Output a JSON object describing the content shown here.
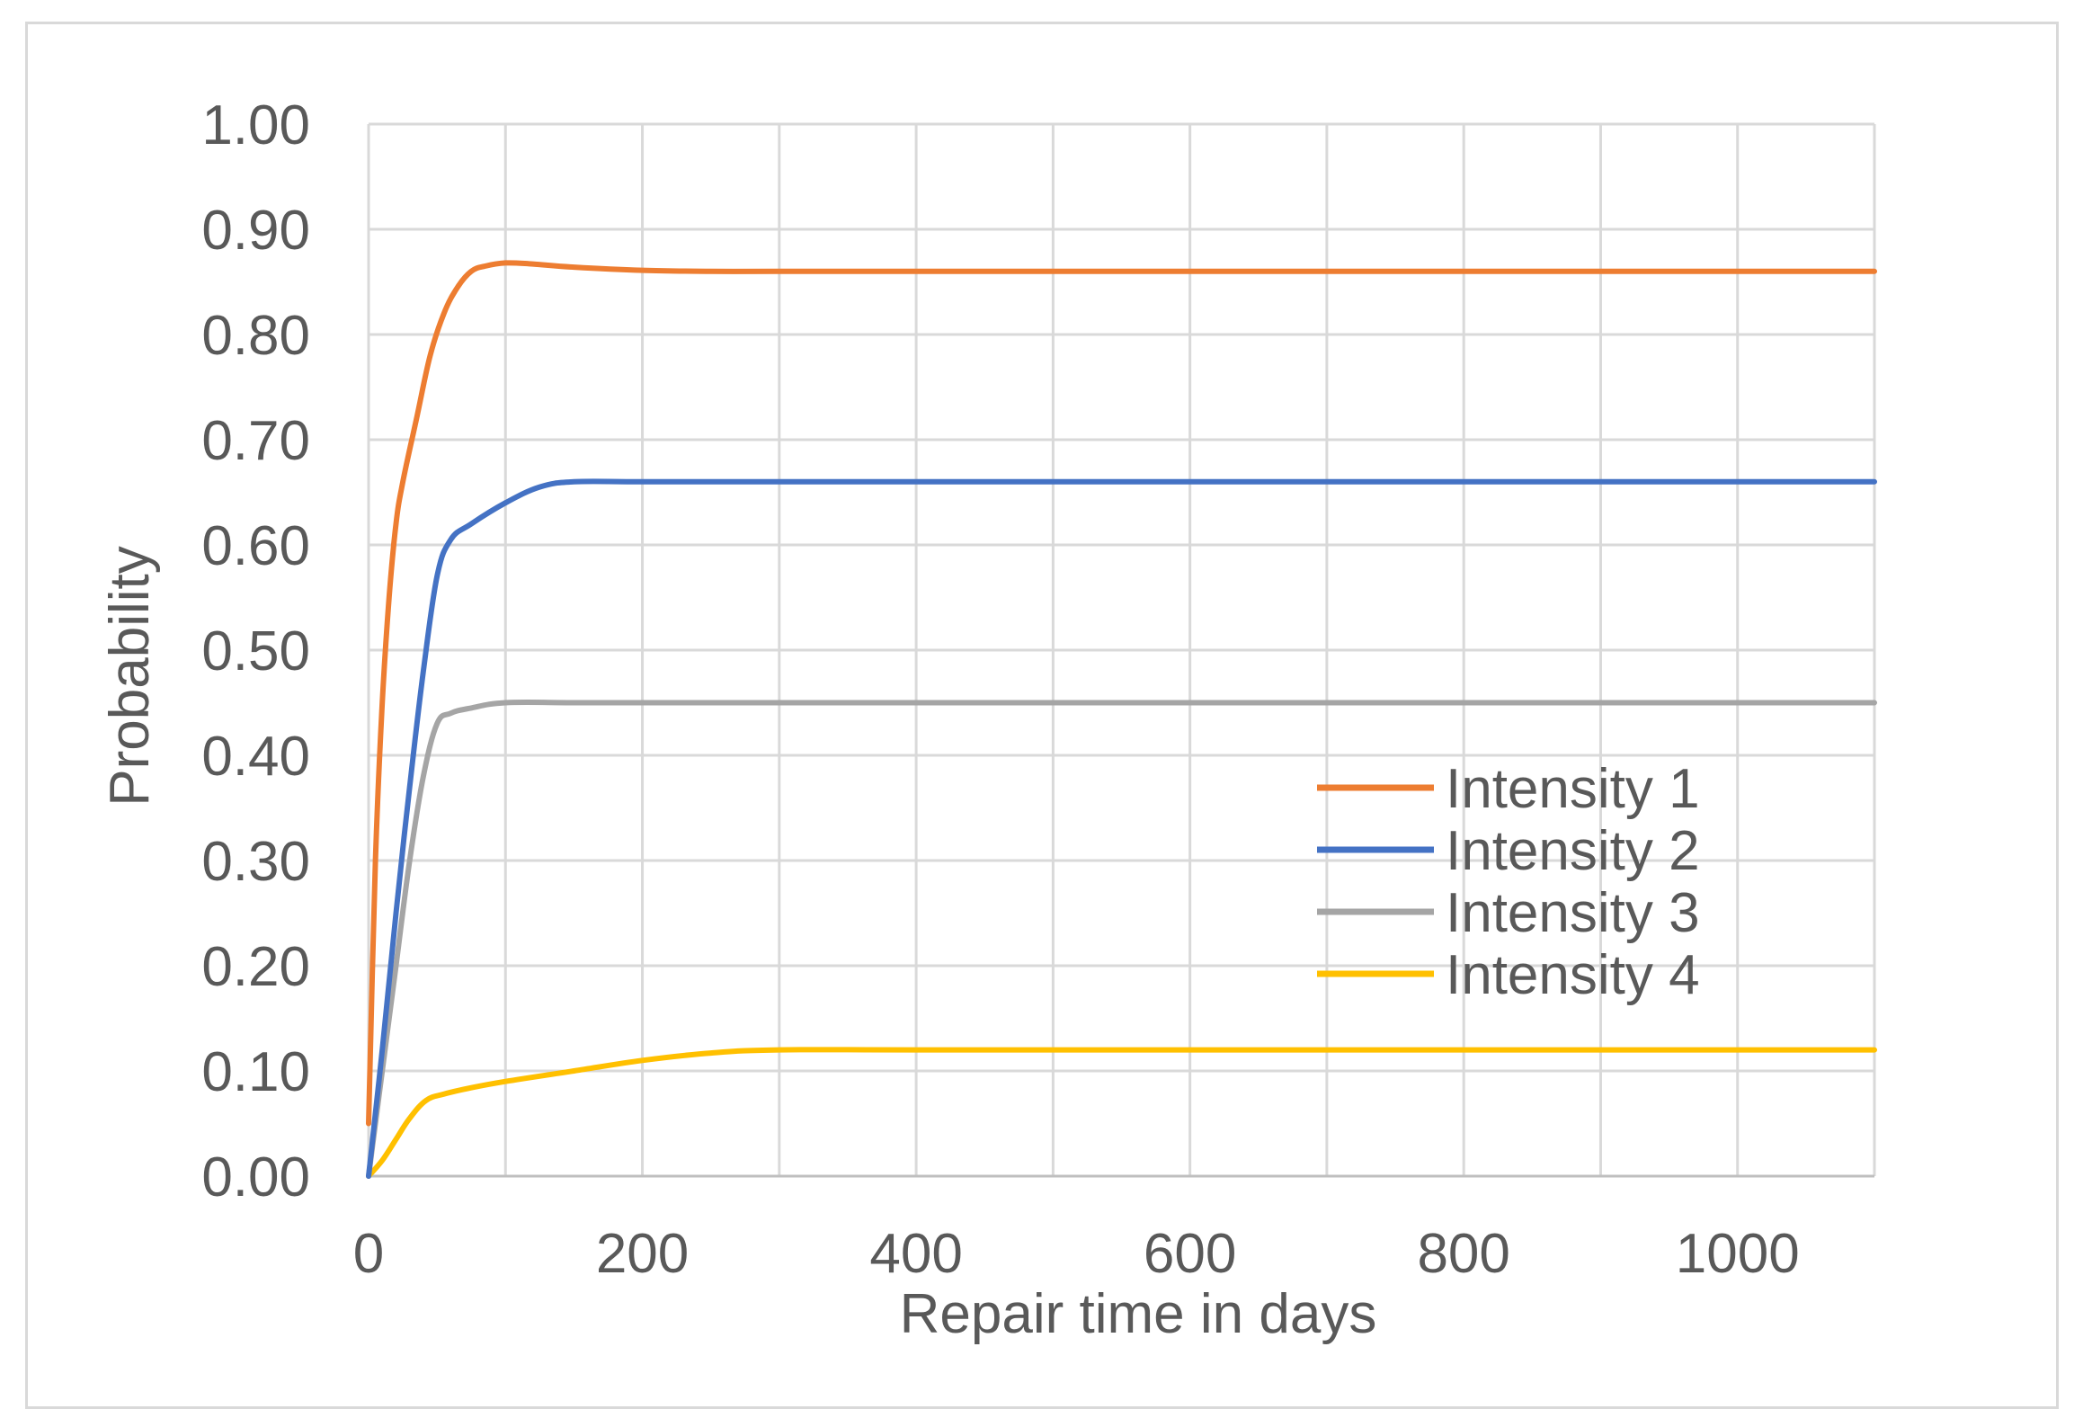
{
  "chart_data": {
    "type": "line",
    "title": "",
    "xlabel": "Repair time in days",
    "ylabel": "Probability",
    "xlim": [
      0,
      1100
    ],
    "ylim": [
      0,
      1.0
    ],
    "x_ticks": [
      0,
      200,
      400,
      600,
      800,
      1000
    ],
    "x_tick_labels": [
      "0",
      "200",
      "400",
      "600",
      "800",
      "1000"
    ],
    "y_ticks": [
      0,
      0.1,
      0.2,
      0.3,
      0.4,
      0.5,
      0.6,
      0.7,
      0.8,
      0.9,
      1.0
    ],
    "y_tick_labels": [
      "0.00",
      "0.10",
      "0.20",
      "0.30",
      "0.40",
      "0.50",
      "0.60",
      "0.70",
      "0.80",
      "0.90",
      "1.00"
    ],
    "grid": true,
    "legend_position": "right-middle",
    "series": [
      {
        "name": "Intensity 1",
        "color": "#ED7D31",
        "x": [
          0,
          5,
          10,
          15,
          20,
          25,
          35,
          45,
          55,
          65,
          75,
          85,
          100,
          120,
          150,
          200,
          250,
          300,
          400,
          600,
          800,
          1000,
          1100
        ],
        "values": [
          0.05,
          0.3,
          0.45,
          0.55,
          0.62,
          0.66,
          0.72,
          0.78,
          0.82,
          0.845,
          0.86,
          0.865,
          0.868,
          0.867,
          0.864,
          0.861,
          0.86,
          0.86,
          0.86,
          0.86,
          0.86,
          0.86,
          0.86
        ]
      },
      {
        "name": "Intensity 2",
        "color": "#4472C4",
        "x": [
          0,
          10,
          20,
          30,
          40,
          50,
          60,
          75,
          100,
          125,
          150,
          200,
          300,
          400,
          600,
          800,
          1000,
          1100
        ],
        "values": [
          0.0,
          0.12,
          0.25,
          0.37,
          0.48,
          0.57,
          0.605,
          0.62,
          0.64,
          0.655,
          0.66,
          0.66,
          0.66,
          0.66,
          0.66,
          0.66,
          0.66,
          0.66
        ]
      },
      {
        "name": "Intensity 3",
        "color": "#A5A5A5",
        "x": [
          0,
          10,
          20,
          30,
          40,
          50,
          60,
          75,
          100,
          150,
          200,
          300,
          400,
          600,
          800,
          1000,
          1100
        ],
        "values": [
          0.0,
          0.1,
          0.2,
          0.3,
          0.38,
          0.43,
          0.44,
          0.445,
          0.45,
          0.45,
          0.45,
          0.45,
          0.45,
          0.45,
          0.45,
          0.45,
          0.45
        ]
      },
      {
        "name": "Intensity 4",
        "color": "#FFC000",
        "x": [
          0,
          10,
          20,
          30,
          42,
          55,
          75,
          100,
          150,
          200,
          250,
          300,
          400,
          600,
          800,
          1000,
          1100
        ],
        "values": [
          0.0,
          0.015,
          0.035,
          0.055,
          0.072,
          0.078,
          0.084,
          0.09,
          0.1,
          0.11,
          0.117,
          0.12,
          0.12,
          0.12,
          0.12,
          0.12,
          0.12
        ]
      }
    ]
  }
}
